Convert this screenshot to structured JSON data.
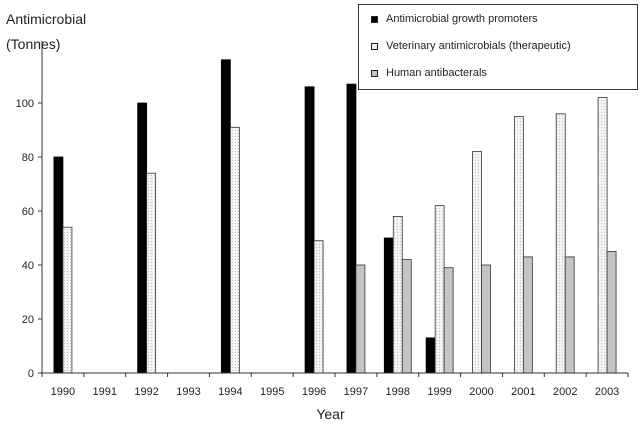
{
  "chart_data": {
    "type": "bar",
    "ylabel": [
      "Antimicrobial",
      "(Tonnes)"
    ],
    "xlabel": "Year",
    "ylim": [
      0,
      120
    ],
    "yticks": [
      0,
      20,
      40,
      60,
      80,
      100
    ],
    "categories": [
      "1990",
      "1991",
      "1992",
      "1993",
      "1994",
      "1995",
      "1996",
      "1997",
      "1998",
      "1999",
      "2000",
      "2001",
      "2002",
      "2003"
    ],
    "series": [
      {
        "name": "Antimicrobial growth promoters",
        "color": "#000000",
        "values": [
          80,
          null,
          100,
          null,
          116,
          null,
          106,
          107,
          50,
          13,
          null,
          null,
          null,
          null
        ]
      },
      {
        "name": "Veterinary antimicrobials (therapeutic)",
        "color": "#f2f2f2",
        "values": [
          54,
          null,
          74,
          null,
          91,
          null,
          49,
          null,
          58,
          62,
          82,
          95,
          96,
          102
        ]
      },
      {
        "name": "Human antibacterals",
        "color": "#c4c4c4",
        "values": [
          null,
          null,
          null,
          null,
          null,
          null,
          null,
          40,
          42,
          39,
          40,
          43,
          43,
          45
        ]
      }
    ],
    "legend_position": "top-right",
    "grid": false
  }
}
